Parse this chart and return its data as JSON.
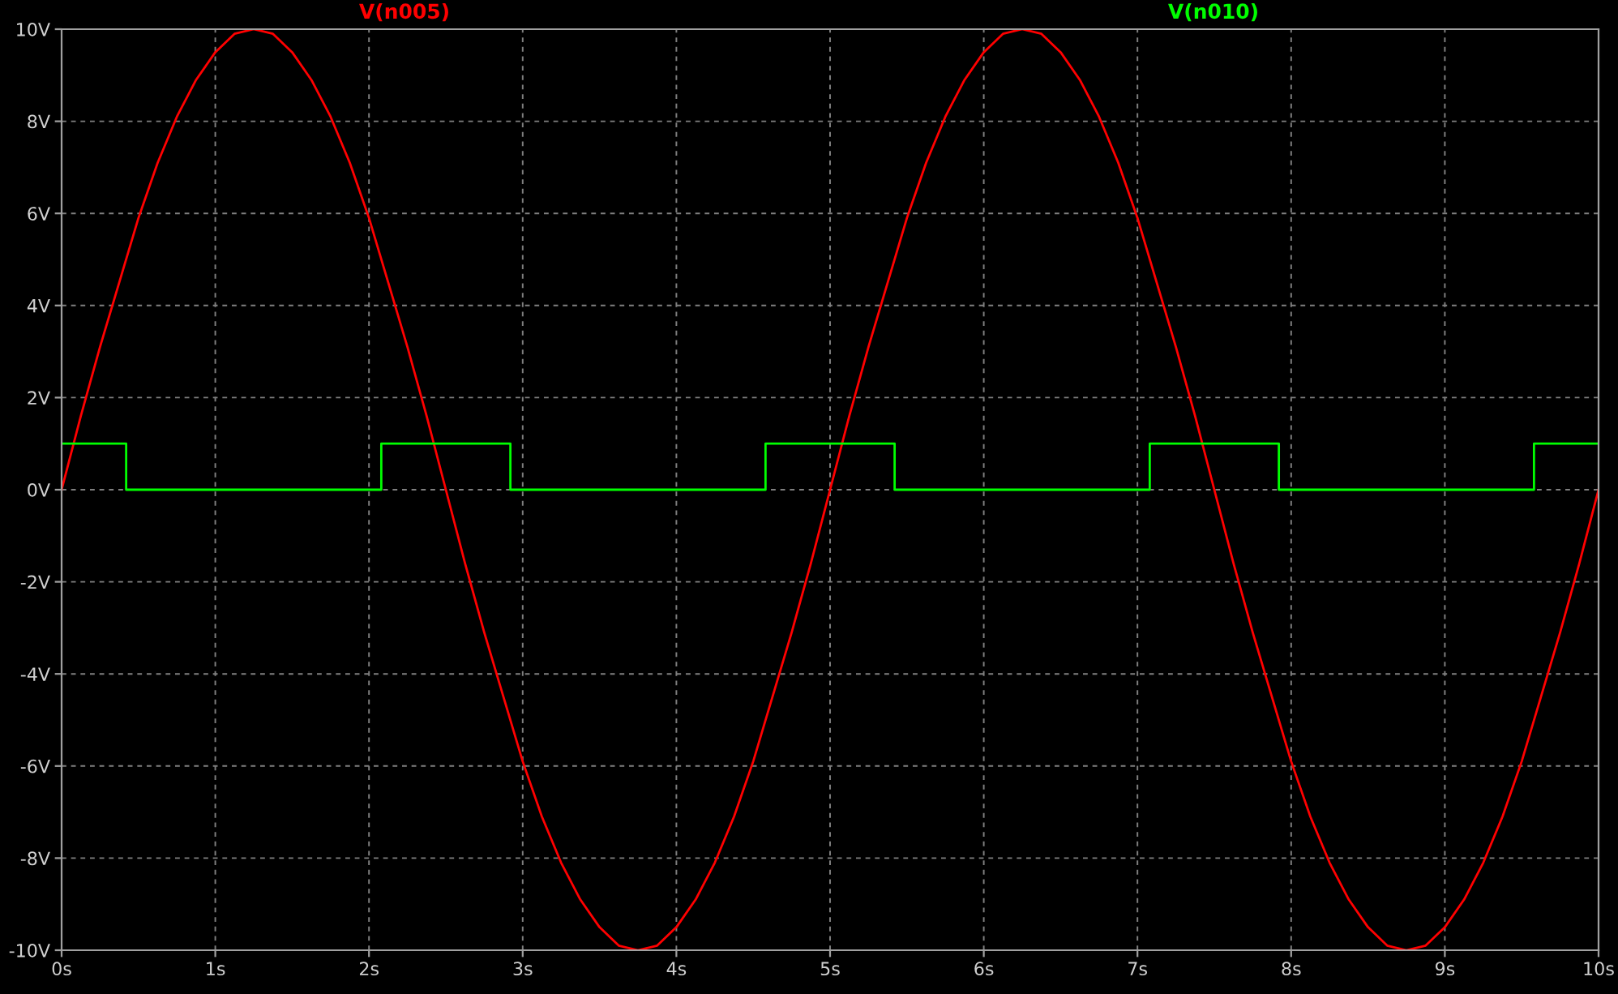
{
  "chart_data": {
    "type": "line",
    "legend": "top",
    "grid": true,
    "line_style": "solid",
    "marker": "none",
    "xlim": [
      0,
      10
    ],
    "ylim": [
      -10,
      10
    ],
    "xticks": [
      {
        "value": 0,
        "label": "0s"
      },
      {
        "value": 1,
        "label": "1s"
      },
      {
        "value": 2,
        "label": "2s"
      },
      {
        "value": 3,
        "label": "3s"
      },
      {
        "value": 4,
        "label": "4s"
      },
      {
        "value": 5,
        "label": "5s"
      },
      {
        "value": 6,
        "label": "6s"
      },
      {
        "value": 7,
        "label": "7s"
      },
      {
        "value": 8,
        "label": "8s"
      },
      {
        "value": 9,
        "label": "9s"
      },
      {
        "value": 10,
        "label": "10s"
      }
    ],
    "yticks": [
      {
        "value": -10,
        "label": "-10V"
      },
      {
        "value": -8,
        "label": "-8V"
      },
      {
        "value": -6,
        "label": "-6V"
      },
      {
        "value": -4,
        "label": "-4V"
      },
      {
        "value": -2,
        "label": "-2V"
      },
      {
        "value": 0,
        "label": "0V"
      },
      {
        "value": 2,
        "label": "2V"
      },
      {
        "value": 4,
        "label": "4V"
      },
      {
        "value": 6,
        "label": "6V"
      },
      {
        "value": 8,
        "label": "8V"
      },
      {
        "value": 10,
        "label": "10V"
      }
    ],
    "series": [
      {
        "name": "V(n005)",
        "color": "#ff0000",
        "x": [
          0,
          0.125,
          0.25,
          0.375,
          0.5,
          0.625,
          0.75,
          0.875,
          1,
          1.125,
          1.25,
          1.375,
          1.5,
          1.625,
          1.75,
          1.875,
          2,
          2.125,
          2.25,
          2.375,
          2.5,
          2.625,
          2.75,
          2.875,
          3,
          3.125,
          3.25,
          3.375,
          3.5,
          3.625,
          3.75,
          3.875,
          4,
          4.125,
          4.25,
          4.375,
          4.5,
          4.625,
          4.75,
          4.875,
          5,
          5.125,
          5.25,
          5.375,
          5.5,
          5.625,
          5.75,
          5.875,
          6,
          6.125,
          6.25,
          6.375,
          6.5,
          6.625,
          6.75,
          6.875,
          7,
          7.125,
          7.25,
          7.375,
          7.5,
          7.625,
          7.75,
          7.875,
          8,
          8.125,
          8.25,
          8.375,
          8.5,
          8.625,
          8.75,
          8.875,
          9,
          9.125,
          9.25,
          9.375,
          9.5,
          9.625,
          9.75,
          9.875,
          10
        ],
        "values": [
          0,
          1.6,
          3.1,
          4.5,
          5.9,
          7.1,
          8.1,
          8.9,
          9.5,
          9.9,
          10,
          9.9,
          9.5,
          8.9,
          8.1,
          7.1,
          5.9,
          4.5,
          3.1,
          1.6,
          0,
          -1.6,
          -3.1,
          -4.5,
          -5.9,
          -7.1,
          -8.1,
          -8.9,
          -9.5,
          -9.9,
          -10,
          -9.9,
          -9.5,
          -8.9,
          -8.1,
          -7.1,
          -5.9,
          -4.5,
          -3.1,
          -1.6,
          0,
          1.6,
          3.1,
          4.5,
          5.9,
          7.1,
          8.1,
          8.9,
          9.5,
          9.9,
          10,
          9.9,
          9.5,
          8.9,
          8.1,
          7.1,
          5.9,
          4.5,
          3.1,
          1.6,
          0,
          -1.6,
          -3.1,
          -4.5,
          -5.9,
          -7.1,
          -8.1,
          -8.9,
          -9.5,
          -9.9,
          -10,
          -9.9,
          -9.5,
          -8.9,
          -8.1,
          -7.1,
          -5.9,
          -4.5,
          -3.1,
          -1.6,
          0
        ]
      },
      {
        "name": "V(n010)",
        "color": "#00ff00",
        "type": "step",
        "x": [
          0,
          0.42,
          2.08,
          2.92,
          4.58,
          5.42,
          7.08,
          7.92,
          9.58,
          10
        ],
        "values": [
          1,
          0,
          1,
          0,
          1,
          0,
          1,
          0,
          1,
          1
        ]
      }
    ]
  }
}
